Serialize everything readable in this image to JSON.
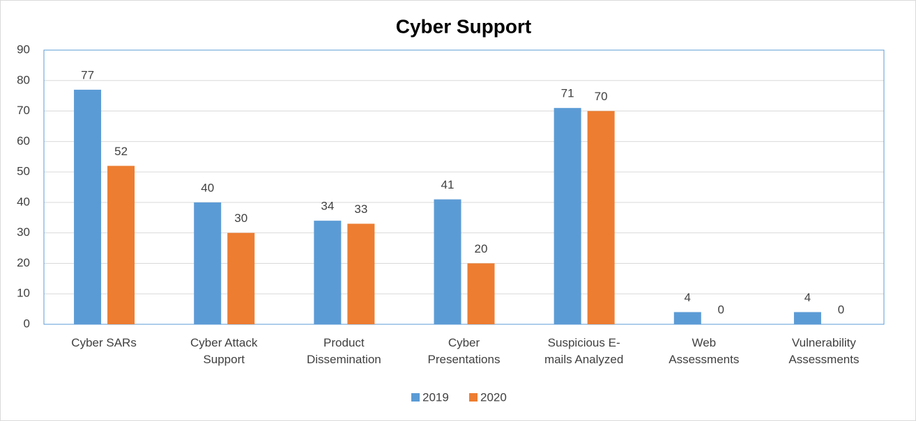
{
  "chart_data": {
    "type": "bar",
    "title": "Cyber Support",
    "categories": [
      [
        "Cyber SARs"
      ],
      [
        "Cyber Attack",
        "Support"
      ],
      [
        "Product",
        "Dissemination"
      ],
      [
        "Cyber",
        "Presentations"
      ],
      [
        "Suspicious E-",
        "mails Analyzed"
      ],
      [
        "Web",
        "Assessments"
      ],
      [
        "Vulnerability",
        "Assessments"
      ]
    ],
    "series": [
      {
        "name": "2019",
        "color": "#5b9bd5",
        "values": [
          77,
          40,
          34,
          41,
          71,
          4,
          4
        ]
      },
      {
        "name": "2020",
        "color": "#ed7d31",
        "values": [
          52,
          30,
          33,
          20,
          70,
          0,
          0
        ]
      }
    ],
    "ylim": [
      0,
      90
    ],
    "yticks": [
      0,
      10,
      20,
      30,
      40,
      50,
      60,
      70,
      80,
      90
    ],
    "grid": true,
    "legend": "bottom"
  }
}
